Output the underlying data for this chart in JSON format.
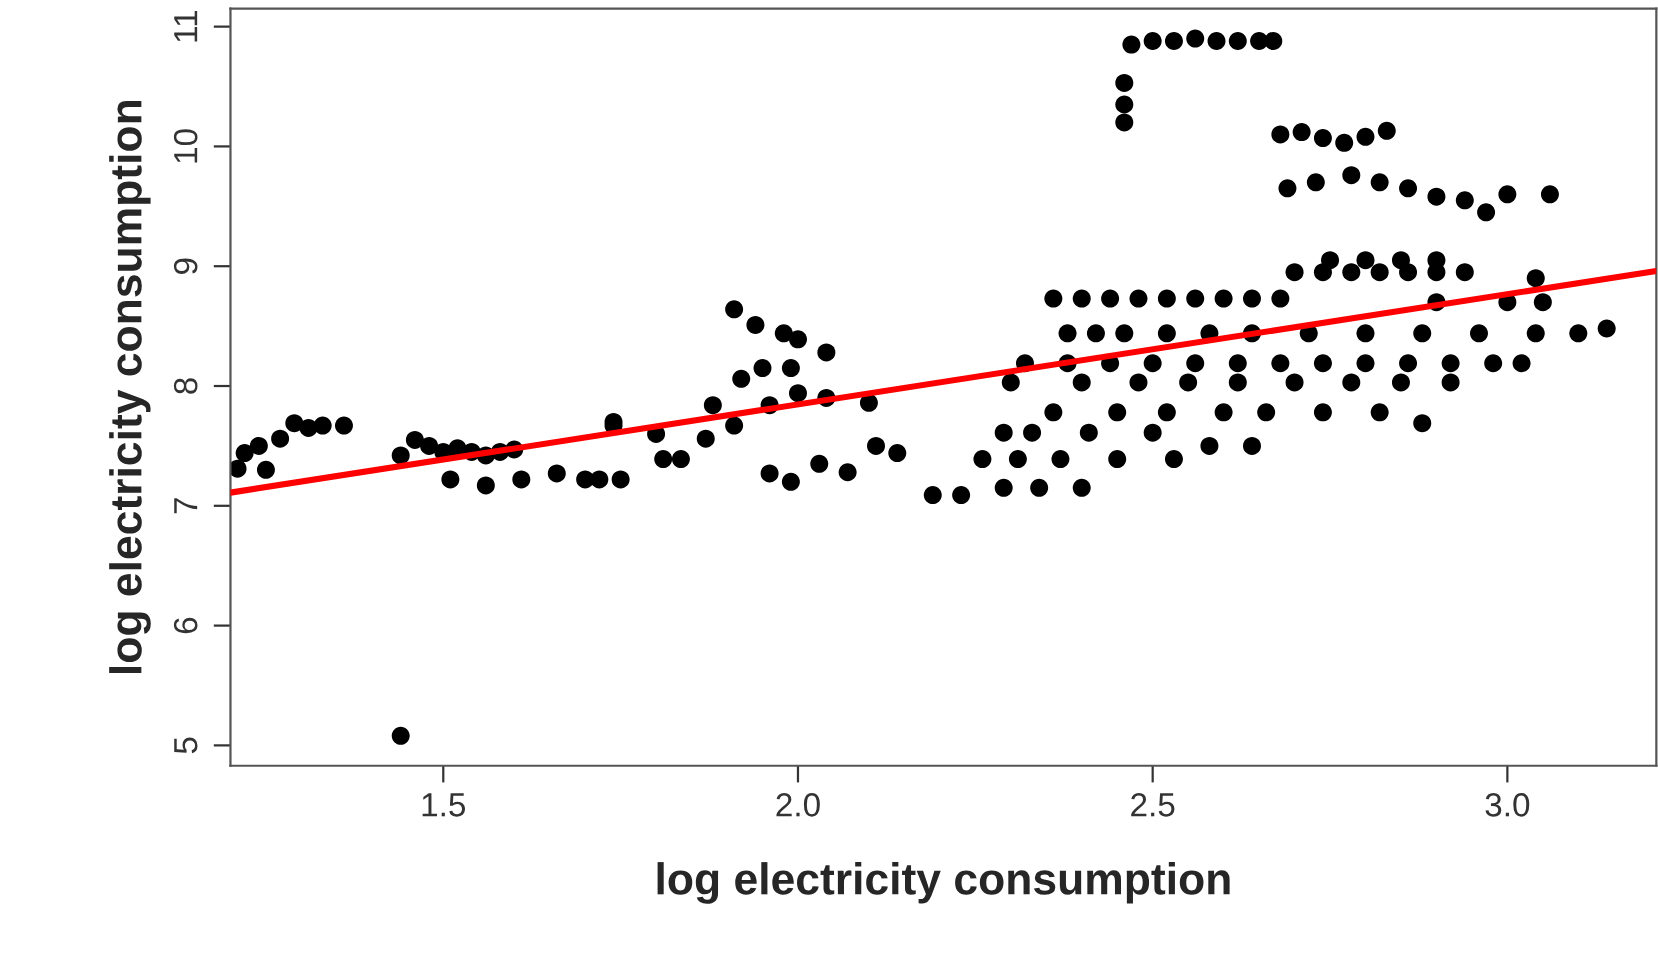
{
  "chart_data": {
    "type": "scatter",
    "xlabel": "log electricity consumption",
    "ylabel": "log electricity consumption",
    "xlim": [
      1.2,
      3.21
    ],
    "ylim": [
      4.83,
      11.15
    ],
    "xticks": [
      {
        "value": 1.5,
        "label": "1.5"
      },
      {
        "value": 2.0,
        "label": "2.0"
      },
      {
        "value": 2.5,
        "label": "2.5"
      },
      {
        "value": 3.0,
        "label": "3.0"
      }
    ],
    "yticks": [
      5,
      6,
      7,
      8,
      9,
      10,
      11
    ],
    "grid": false,
    "legend": false,
    "marker": "circle",
    "series": [
      {
        "color": "#000000",
        "x": [
          1.21,
          1.22,
          1.24,
          1.27,
          1.29,
          1.31,
          1.33,
          1.36,
          1.25,
          1.44,
          1.44,
          1.46,
          1.48,
          1.5,
          1.52,
          1.54,
          1.56,
          1.58,
          1.6,
          1.51,
          1.56,
          1.61,
          1.66,
          1.7,
          1.72,
          1.75,
          1.74,
          1.81,
          1.835,
          1.87,
          1.91,
          1.96,
          2.0,
          2.04,
          2.1,
          1.91,
          1.94,
          1.98,
          2.0,
          2.04,
          1.92,
          1.95,
          1.99,
          1.74,
          1.8,
          1.88,
          1.96,
          1.99,
          2.03,
          2.07,
          2.11,
          2.14,
          2.19,
          2.23,
          2.47,
          2.5,
          2.53,
          2.56,
          2.59,
          2.62,
          2.65,
          2.67,
          2.46,
          2.46,
          2.46,
          2.68,
          2.71,
          2.74,
          2.77,
          2.8,
          2.83,
          2.69,
          2.73,
          2.78,
          2.82,
          2.86,
          2.9,
          2.94,
          2.97,
          3.0,
          3.06,
          2.36,
          2.4,
          2.44,
          2.48,
          2.52,
          2.56,
          2.6,
          2.64,
          2.68,
          2.7,
          2.74,
          2.78,
          2.82,
          2.86,
          2.9,
          2.94,
          2.75,
          2.8,
          2.85,
          2.9,
          2.38,
          2.42,
          2.46,
          2.52,
          2.58,
          2.64,
          2.72,
          2.8,
          2.88,
          2.96,
          3.04,
          3.1,
          3.14,
          2.32,
          2.38,
          2.44,
          2.5,
          2.56,
          2.62,
          2.68,
          2.74,
          2.8,
          2.86,
          2.92,
          2.98,
          3.02,
          2.3,
          2.4,
          2.48,
          2.55,
          2.62,
          2.7,
          2.78,
          2.85,
          2.92,
          2.36,
          2.45,
          2.52,
          2.6,
          2.66,
          2.74,
          2.82,
          2.88,
          2.29,
          2.33,
          2.41,
          2.5,
          2.58,
          2.64,
          2.26,
          2.31,
          2.37,
          2.45,
          2.53,
          2.29,
          2.34,
          2.4,
          2.9,
          3.0,
          3.05,
          3.04
        ],
        "values": [
          7.31,
          7.44,
          7.5,
          7.56,
          7.69,
          7.65,
          7.67,
          7.67,
          7.3,
          5.08,
          7.42,
          7.55,
          7.5,
          7.45,
          7.48,
          7.45,
          7.42,
          7.45,
          7.47,
          7.22,
          7.17,
          7.22,
          7.27,
          7.22,
          7.22,
          7.22,
          7.67,
          7.39,
          7.39,
          7.56,
          7.67,
          7.84,
          7.94,
          7.9,
          7.86,
          8.64,
          8.51,
          8.44,
          8.39,
          8.28,
          8.06,
          8.15,
          8.15,
          7.7,
          7.6,
          7.84,
          7.27,
          7.2,
          7.35,
          7.28,
          7.5,
          7.44,
          7.09,
          7.09,
          10.85,
          10.88,
          10.88,
          10.9,
          10.88,
          10.88,
          10.88,
          10.88,
          10.53,
          10.35,
          10.2,
          10.1,
          10.12,
          10.07,
          10.03,
          10.08,
          10.13,
          9.65,
          9.7,
          9.76,
          9.7,
          9.65,
          9.58,
          9.55,
          9.45,
          9.6,
          9.6,
          8.73,
          8.73,
          8.73,
          8.73,
          8.73,
          8.73,
          8.73,
          8.73,
          8.73,
          8.95,
          8.95,
          8.95,
          8.95,
          8.95,
          8.95,
          8.95,
          9.05,
          9.05,
          9.05,
          9.05,
          8.44,
          8.44,
          8.44,
          8.44,
          8.44,
          8.44,
          8.44,
          8.44,
          8.44,
          8.44,
          8.44,
          8.44,
          8.48,
          8.19,
          8.19,
          8.19,
          8.19,
          8.19,
          8.19,
          8.19,
          8.19,
          8.19,
          8.19,
          8.19,
          8.19,
          8.19,
          8.03,
          8.03,
          8.03,
          8.03,
          8.03,
          8.03,
          8.03,
          8.03,
          8.03,
          7.78,
          7.78,
          7.78,
          7.78,
          7.78,
          7.78,
          7.78,
          7.69,
          7.61,
          7.61,
          7.61,
          7.61,
          7.5,
          7.5,
          7.39,
          7.39,
          7.39,
          7.39,
          7.39,
          7.15,
          7.15,
          7.15,
          8.7,
          8.7,
          8.7,
          8.9
        ]
      },
      {
        "type": "line",
        "color": "#ff0000",
        "line_style": "solid",
        "marker": "none",
        "x": [
          1.2,
          3.21
        ],
        "values": [
          7.11,
          8.96
        ]
      }
    ]
  }
}
